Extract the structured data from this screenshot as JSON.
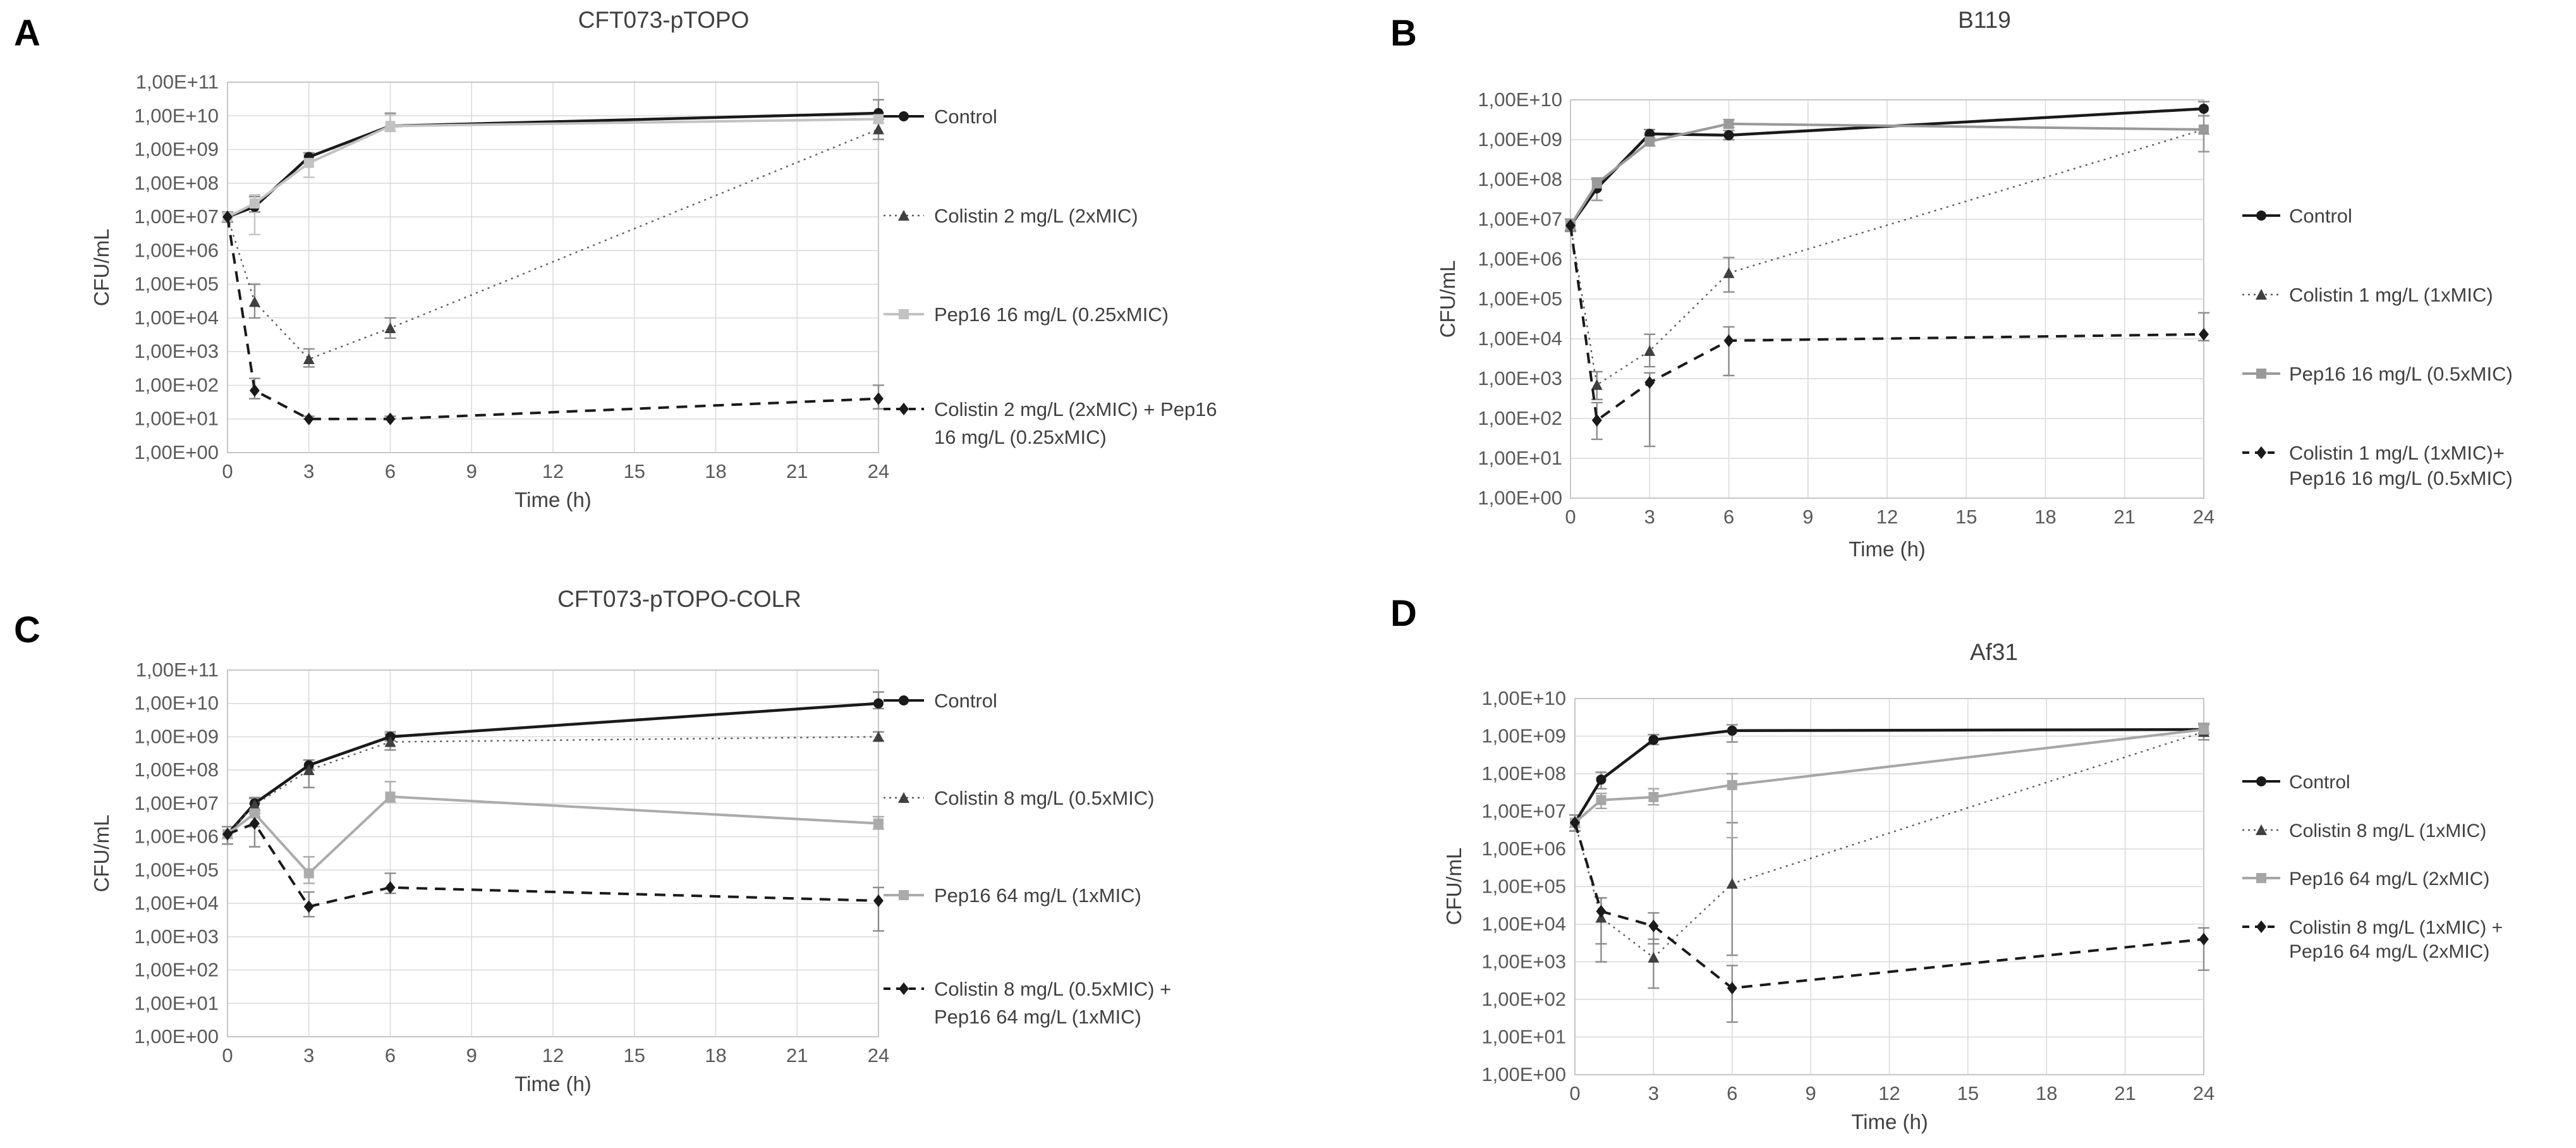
{
  "figure": {
    "background": "#ffffff",
    "grid_color": "#d9d9d9",
    "axis_color": "#c6c6c6",
    "tick_text_color": "#595959",
    "title_text_color": "#404040",
    "legend_text_color": "#404040",
    "error_bar_color": "#8c8c8c",
    "x_axis_title": "Time (h)",
    "y_axis_title": "CFU/mL"
  },
  "chart_data": [
    {
      "panel_letter": "A",
      "type": "line",
      "title": "CFT073-pTOPO",
      "xlabel": "Time (h)",
      "ylabel": "CFU/mL",
      "x_scale": "linear",
      "y_scale": "log10",
      "xlim": [
        0,
        24
      ],
      "y_exp_min": 0,
      "y_exp_max": 11,
      "x_ticks": [
        "0",
        "3",
        "6",
        "9",
        "12",
        "15",
        "18",
        "21",
        "24"
      ],
      "y_tick_labels": [
        "1,00E+11",
        "1,00E+10",
        "1,00E+09",
        "1,00E+08",
        "1,00E+07",
        "1,00E+06",
        "1,00E+05",
        "1,00E+04",
        "1,00E+03",
        "1,00E+02",
        "1,00E+01",
        "1,00E+00"
      ],
      "x": [
        0,
        1,
        3,
        6,
        24
      ],
      "series": [
        {
          "name": "control",
          "label_lines": [
            "Control"
          ],
          "color": "#1a1a1a",
          "dash": "solid",
          "marker": "circle",
          "width": 4.5,
          "values": [
            10000000.0,
            20000000.0,
            600000000.0,
            5000000000.0,
            12000000000.0
          ],
          "err_lo": [
            7000000.0,
            14000000.0,
            450000000.0,
            3500000000.0,
            8000000000.0
          ],
          "err_hi": [
            14000000.0,
            40000000.0,
            800000000.0,
            12000000000.0,
            30000000000.0
          ]
        },
        {
          "name": "colistin",
          "label_lines": [
            "Colistin 2 mg/L (2xMIC)"
          ],
          "color": "#595959",
          "marker_color": "#404040",
          "dash": "dotted",
          "marker": "triangle",
          "width": 2.4,
          "values": [
            10000000.0,
            30000.0,
            600.0,
            5000.0,
            4000000000.0
          ],
          "err_lo": [
            7000000.0,
            10000.0,
            350.0,
            2500.0,
            2000000000.0
          ],
          "err_hi": [
            14000000.0,
            100000.0,
            1200.0,
            10000.0,
            8000000000.0
          ]
        },
        {
          "name": "pep16",
          "label_lines": [
            "Pep16 16 mg/L (0.25xMIC)"
          ],
          "color": "#c2c2c2",
          "dash": "solid",
          "marker": "square",
          "width": 4,
          "values": [
            10000000.0,
            25000000.0,
            400000000.0,
            5000000000.0,
            8000000000.0
          ],
          "err_lo": [
            7000000.0,
            3000000.0,
            150000000.0,
            3500000000.0,
            6000000000.0
          ],
          "err_hi": [
            14000000.0,
            45000000.0,
            700000000.0,
            11000000000.0,
            12000000000.0
          ]
        },
        {
          "name": "combo",
          "label_lines": [
            "Colistin 2 mg/L (2xMIC) + Pep16",
            "16 mg/L (0.25xMIC)"
          ],
          "color": "#1a1a1a",
          "dash": "dashed",
          "marker": "diamond",
          "width": 4,
          "values": [
            10000000.0,
            70.0,
            10.0,
            10.0,
            40.0
          ],
          "err_lo": [
            7000000.0,
            40.0,
            10.0,
            10.0,
            20.0
          ],
          "err_hi": [
            14000000.0,
            160.0,
            12.0,
            12.0,
            100.0
          ]
        }
      ]
    },
    {
      "panel_letter": "B",
      "type": "line",
      "title": "B119",
      "xlabel": "Time (h)",
      "ylabel": "CFU/mL",
      "x_scale": "linear",
      "y_scale": "log10",
      "xlim": [
        0,
        24
      ],
      "y_exp_min": 0,
      "y_exp_max": 10,
      "x_ticks": [
        "0",
        "3",
        "6",
        "9",
        "12",
        "15",
        "18",
        "21",
        "24"
      ],
      "y_tick_labels": [
        "1,00E+10",
        "1,00E+09",
        "1,00E+08",
        "1,00E+07",
        "1,00E+06",
        "1,00E+05",
        "1,00E+04",
        "1,00E+03",
        "1,00E+02",
        "1,00E+01",
        "1,00E+00"
      ],
      "x": [
        0,
        1,
        3,
        6,
        24
      ],
      "series": [
        {
          "name": "control",
          "label_lines": [
            "Control"
          ],
          "color": "#1a1a1a",
          "dash": "solid",
          "marker": "circle",
          "width": 4.5,
          "values": [
            7000000.0,
            60000000.0,
            1400000000.0,
            1300000000.0,
            6000000000.0
          ],
          "err_lo": [
            5000000.0,
            30000000.0,
            1100000000.0,
            1000000000.0,
            4000000000.0
          ],
          "err_hi": [
            10000000.0,
            100000000.0,
            1800000000.0,
            1700000000.0,
            9000000000.0
          ]
        },
        {
          "name": "colistin",
          "label_lines": [
            "Colistin 1 mg/L (1xMIC)"
          ],
          "color": "#595959",
          "marker_color": "#404040",
          "dash": "dotted",
          "marker": "triangle",
          "width": 2.4,
          "values": [
            7000000.0,
            700.0,
            5000.0,
            450000.0,
            1800000000.0
          ],
          "err_lo": [
            5000000.0,
            300.0,
            2000.0,
            150000.0,
            500000000.0
          ],
          "err_hi": [
            10000000.0,
            1500.0,
            13000.0,
            1100000.0,
            4000000000.0
          ]
        },
        {
          "name": "pep16",
          "label_lines": [
            "Pep16 16 mg/L (0.5xMIC)"
          ],
          "color": "#999999",
          "dash": "solid",
          "marker": "square",
          "width": 4,
          "values": [
            7000000.0,
            80000000.0,
            900000000.0,
            2500000000.0,
            1800000000.0
          ],
          "err_lo": [
            5000000.0,
            30000000.0,
            700000000.0,
            2000000000.0,
            500000000.0
          ],
          "err_hi": [
            10000000.0,
            110000000.0,
            1300000000.0,
            3200000000.0,
            4000000000.0
          ]
        },
        {
          "name": "combo",
          "label_lines": [
            "Colistin 1 mg/L (1xMIC)+",
            "Pep16 16 mg/L (0.5xMIC)"
          ],
          "color": "#1a1a1a",
          "dash": "dashed",
          "marker": "diamond",
          "width": 4,
          "values": [
            7000000.0,
            90.0,
            800.0,
            9000.0,
            13000.0
          ],
          "err_lo": [
            5000000.0,
            30.0,
            20.0,
            1200.0,
            9000.0
          ],
          "err_hi": [
            10000000.0,
            250.0,
            1400.0,
            20000.0,
            45000.0
          ]
        }
      ]
    },
    {
      "panel_letter": "C",
      "type": "line",
      "title": "CFT073-pTOPO-COLR",
      "xlabel": "Time (h)",
      "ylabel": "CFU/mL",
      "x_scale": "linear",
      "y_scale": "log10",
      "xlim": [
        0,
        24
      ],
      "y_exp_min": 0,
      "y_exp_max": 11,
      "x_ticks": [
        "0",
        "3",
        "6",
        "9",
        "12",
        "15",
        "18",
        "21",
        "24"
      ],
      "y_tick_labels": [
        "1,00E+11",
        "1,00E+10",
        "1,00E+09",
        "1,00E+08",
        "1,00E+07",
        "1,00E+06",
        "1,00E+05",
        "1,00E+04",
        "1,00E+03",
        "1,00E+02",
        "1,00E+01",
        "1,00E+00"
      ],
      "x": [
        0,
        1,
        3,
        6,
        24
      ],
      "series": [
        {
          "name": "control",
          "label_lines": [
            "Control"
          ],
          "color": "#1a1a1a",
          "dash": "solid",
          "marker": "circle",
          "width": 4.5,
          "values": [
            1200000.0,
            10000000.0,
            140000000.0,
            1000000000.0,
            10000000000.0
          ],
          "err_lo": [
            600000.0,
            6000000.0,
            100000000.0,
            750000000.0,
            7000000000.0
          ],
          "err_hi": [
            2000000.0,
            15000000.0,
            200000000.0,
            1400000000.0,
            22000000000.0
          ]
        },
        {
          "name": "colistin",
          "label_lines": [
            "Colistin 8 mg/L (0.5xMIC)"
          ],
          "color": "#595959",
          "marker_color": "#404040",
          "dash": "dotted",
          "marker": "triangle",
          "width": 2.4,
          "values": [
            1200000.0,
            9000000.0,
            100000000.0,
            700000000.0,
            1000000000.0
          ],
          "err_lo": [
            600000.0,
            5000000.0,
            30000000.0,
            400000000.0,
            750000000.0
          ],
          "err_hi": [
            2000000.0,
            14000000.0,
            200000000.0,
            1200000000.0,
            1400000000.0
          ]
        },
        {
          "name": "pep16",
          "label_lines": [
            "Pep16 64 mg/L (1xMIC)"
          ],
          "color": "#ababab",
          "dash": "solid",
          "marker": "square",
          "width": 4,
          "values": [
            1200000.0,
            5000000.0,
            80000.0,
            16000000.0,
            2500000.0
          ],
          "err_lo": [
            600000.0,
            2000000.0,
            40000.0,
            11000000.0,
            1700000.0
          ],
          "err_hi": [
            2000000.0,
            10000000.0,
            250000.0,
            45000000.0,
            4000000.0
          ]
        },
        {
          "name": "combo",
          "label_lines": [
            "Colistin 8 mg/L (0.5xMIC) +",
            "Pep16 64 mg/L (1xMIC)"
          ],
          "color": "#1a1a1a",
          "dash": "dashed",
          "marker": "diamond",
          "width": 4,
          "values": [
            1200000.0,
            2500000.0,
            8000.0,
            30000.0,
            12000.0
          ],
          "err_lo": [
            600000.0,
            500000.0,
            4000.0,
            20000.0,
            1500.0
          ],
          "err_hi": [
            2000000.0,
            4000000.0,
            22000.0,
            80000.0,
            30000.0
          ]
        }
      ]
    },
    {
      "panel_letter": "D",
      "type": "line",
      "title": "Af31",
      "xlabel": "Time (h)",
      "ylabel": "CFU/mL",
      "x_scale": "linear",
      "y_scale": "log10",
      "xlim": [
        0,
        24
      ],
      "y_exp_min": 0,
      "y_exp_max": 10,
      "x_ticks": [
        "0",
        "3",
        "6",
        "9",
        "12",
        "15",
        "18",
        "21",
        "24"
      ],
      "y_tick_labels": [
        "1,00E+10",
        "1,00E+09",
        "1,00E+08",
        "1,00E+07",
        "1,00E+06",
        "1,00E+05",
        "1,00E+04",
        "1,00E+03",
        "1,00E+02",
        "1,00E+01",
        "1,00E+00"
      ],
      "x": [
        0,
        1,
        3,
        6,
        24
      ],
      "series": [
        {
          "name": "control",
          "label_lines": [
            "Control"
          ],
          "color": "#1a1a1a",
          "dash": "solid",
          "marker": "circle",
          "width": 4.5,
          "values": [
            5000000.0,
            70000000.0,
            800000000.0,
            1400000000.0,
            1500000000.0
          ],
          "err_lo": [
            3000000.0,
            40000000.0,
            600000000.0,
            700000000.0,
            1200000000.0
          ],
          "err_hi": [
            8000000.0,
            110000000.0,
            1100000000.0,
            2000000000.0,
            2000000000.0
          ]
        },
        {
          "name": "colistin",
          "label_lines": [
            "Colistin 8 mg/L (1xMIC)"
          ],
          "color": "#595959",
          "marker_color": "#404040",
          "dash": "dotted",
          "marker": "triangle",
          "width": 2.4,
          "values": [
            5000000.0,
            15000.0,
            1300.0,
            120000.0,
            1300000000.0
          ],
          "err_lo": [
            3000000.0,
            3000.0,
            200.0,
            1500.0,
            800000000.0
          ],
          "err_hi": [
            8000000.0,
            50000.0,
            4000.0,
            5000000.0,
            2000000000.0
          ]
        },
        {
          "name": "pep16",
          "label_lines": [
            "Pep16 64 mg/L (2xMIC)"
          ],
          "color": "#a6a6a6",
          "dash": "solid",
          "marker": "square",
          "width": 4,
          "values": [
            5000000.0,
            20000000.0,
            24000000.0,
            50000000.0,
            1500000000.0
          ],
          "err_lo": [
            3000000.0,
            12000000.0,
            15000000.0,
            2000000.0,
            1100000000.0
          ],
          "err_hi": [
            8000000.0,
            30000000.0,
            40000000.0,
            100000000.0,
            2200000000.0
          ]
        },
        {
          "name": "combo",
          "label_lines": [
            "Colistin 8 mg/L (1xMIC) +",
            "Pep16 64 mg/L (2xMIC)"
          ],
          "color": "#1a1a1a",
          "dash": "dashed",
          "marker": "diamond",
          "width": 4,
          "values": [
            5000000.0,
            22000.0,
            9000.0,
            200.0,
            4000.0
          ],
          "err_lo": [
            3000000.0,
            1000.0,
            3000.0,
            25.0,
            600.0
          ],
          "err_hi": [
            8000000.0,
            50000.0,
            20000.0,
            800.0,
            8000.0
          ]
        }
      ]
    }
  ]
}
